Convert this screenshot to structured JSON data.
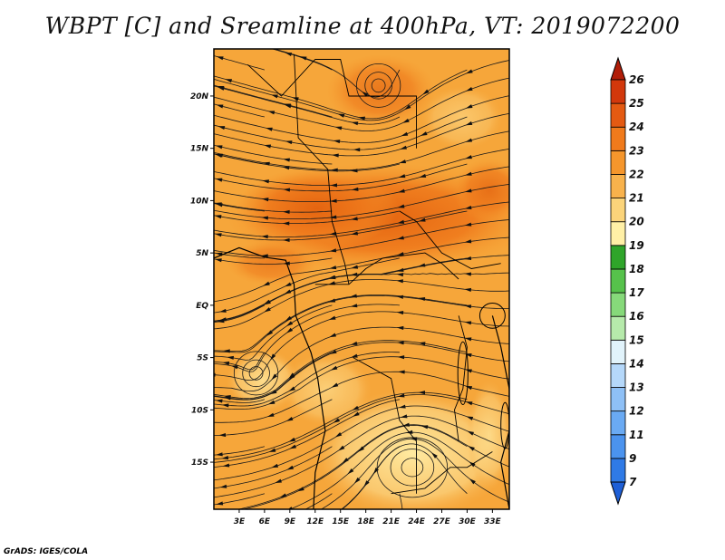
{
  "title": "WBPT [C] and Sreamline at 400hPa, VT: 2019072200",
  "credit": "GrADS: IGES/COLA",
  "chart_data": {
    "type": "heatmap",
    "variable": "WBPT [C]",
    "overlay": "streamlines",
    "x_ticks": [
      "3E",
      "6E",
      "9E",
      "12E",
      "15E",
      "18E",
      "21E",
      "24E",
      "27E",
      "30E",
      "33E"
    ],
    "x_tick_values": [
      3,
      6,
      9,
      12,
      15,
      18,
      21,
      24,
      27,
      30,
      33
    ],
    "y_ticks": [
      "20N",
      "15N",
      "10N",
      "5N",
      "EQ",
      "5S",
      "10S",
      "15S"
    ],
    "y_tick_values": [
      20,
      15,
      10,
      5,
      0,
      -5,
      -10,
      -15
    ],
    "xlim": [
      0,
      35
    ],
    "ylim": [
      -19.5,
      24.5
    ],
    "colorbar": {
      "levels": [
        "7",
        "9",
        "11",
        "12",
        "13",
        "14",
        "15",
        "16",
        "17",
        "18",
        "19",
        "20",
        "21",
        "22",
        "23",
        "24",
        "25",
        "26"
      ],
      "colors": [
        "#1e5fd6",
        "#2f7ae6",
        "#4b93ee",
        "#6aaaf3",
        "#8ec0f6",
        "#b5d8fa",
        "#e1f3fb",
        "#b6eaab",
        "#86d97a",
        "#56c24b",
        "#2fa52a",
        "#fff0a6",
        "#fbd47a",
        "#f8b24c",
        "#f5962c",
        "#f07a1b",
        "#e45a12",
        "#d2380c",
        "#b11d08"
      ]
    },
    "field_description": "warm band 21-23 C from 5N to 15N, cooler 19-20 C over southern Africa",
    "vortices": [
      {
        "name": "cyclonic circulation",
        "lon": 19.5,
        "lat": 21
      },
      {
        "name": "anticyclone",
        "lon": 23.5,
        "lat": -15.5
      },
      {
        "name": "small eddy",
        "lon": 5,
        "lat": -6.5
      }
    ]
  }
}
